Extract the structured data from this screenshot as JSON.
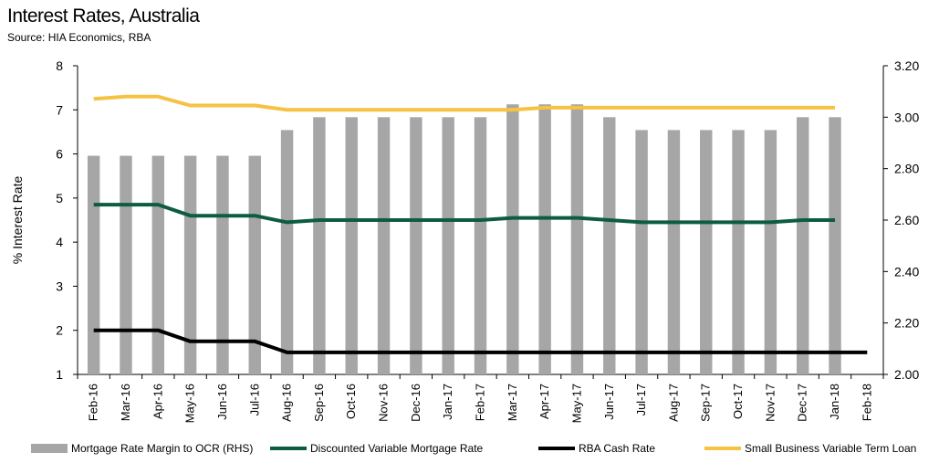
{
  "chart_data": {
    "type": "bar+line",
    "title": "Interest Rates, Australia",
    "subtitle": "Source: HIA Economics, RBA",
    "ylabel": "% Interest Rate",
    "ylim": [
      1,
      8
    ],
    "y2lim": [
      2.0,
      3.2
    ],
    "yticks": [
      "1",
      "2",
      "3",
      "4",
      "5",
      "6",
      "7",
      "8"
    ],
    "y2ticks": [
      "2.00",
      "2.20",
      "2.40",
      "2.60",
      "2.80",
      "3.00",
      "3.20"
    ],
    "categories": [
      "Feb-16",
      "Mar-16",
      "Apr-16",
      "May-16",
      "Jun-16",
      "Jul-16",
      "Aug-16",
      "Sep-16",
      "Oct-16",
      "Nov-16",
      "Dec-16",
      "Jan-17",
      "Feb-17",
      "Mar-17",
      "Apr-17",
      "May-17",
      "Jun-17",
      "Jul-17",
      "Aug-17",
      "Sep-17",
      "Oct-17",
      "Nov-17",
      "Dec-17",
      "Jan-18",
      "Feb-18"
    ],
    "grid": false,
    "legend_position": "bottom",
    "series": [
      {
        "name": "Mortgage Rate Margin to OCR (RHS)",
        "kind": "bar",
        "axis": "right",
        "color": "#a6a6a6",
        "values": [
          2.85,
          2.85,
          2.85,
          2.85,
          2.85,
          2.85,
          2.95,
          3.0,
          3.0,
          3.0,
          3.0,
          3.0,
          3.0,
          3.05,
          3.05,
          3.05,
          3.0,
          2.95,
          2.95,
          2.95,
          2.95,
          2.95,
          3.0,
          3.0,
          null
        ]
      },
      {
        "name": "Discounted Variable Mortgage Rate",
        "kind": "line",
        "axis": "left",
        "color": "#0e5c40",
        "values": [
          4.85,
          4.85,
          4.85,
          4.6,
          4.6,
          4.6,
          4.45,
          4.5,
          4.5,
          4.5,
          4.5,
          4.5,
          4.5,
          4.55,
          4.55,
          4.55,
          4.5,
          4.45,
          4.45,
          4.45,
          4.45,
          4.45,
          4.5,
          4.5,
          null
        ]
      },
      {
        "name": "RBA Cash Rate",
        "kind": "line",
        "axis": "left",
        "color": "#000000",
        "values": [
          2.0,
          2.0,
          2.0,
          1.75,
          1.75,
          1.75,
          1.5,
          1.5,
          1.5,
          1.5,
          1.5,
          1.5,
          1.5,
          1.5,
          1.5,
          1.5,
          1.5,
          1.5,
          1.5,
          1.5,
          1.5,
          1.5,
          1.5,
          1.5,
          1.5
        ]
      },
      {
        "name": "Small Business Variable Term Loan",
        "kind": "line",
        "axis": "left",
        "color": "#f5c242",
        "values": [
          7.25,
          7.3,
          7.3,
          7.1,
          7.1,
          7.1,
          7.0,
          7.0,
          7.0,
          7.0,
          7.0,
          7.0,
          7.0,
          7.0,
          7.05,
          7.05,
          7.05,
          7.05,
          7.05,
          7.05,
          7.05,
          7.05,
          7.05,
          7.05,
          null
        ]
      }
    ]
  }
}
